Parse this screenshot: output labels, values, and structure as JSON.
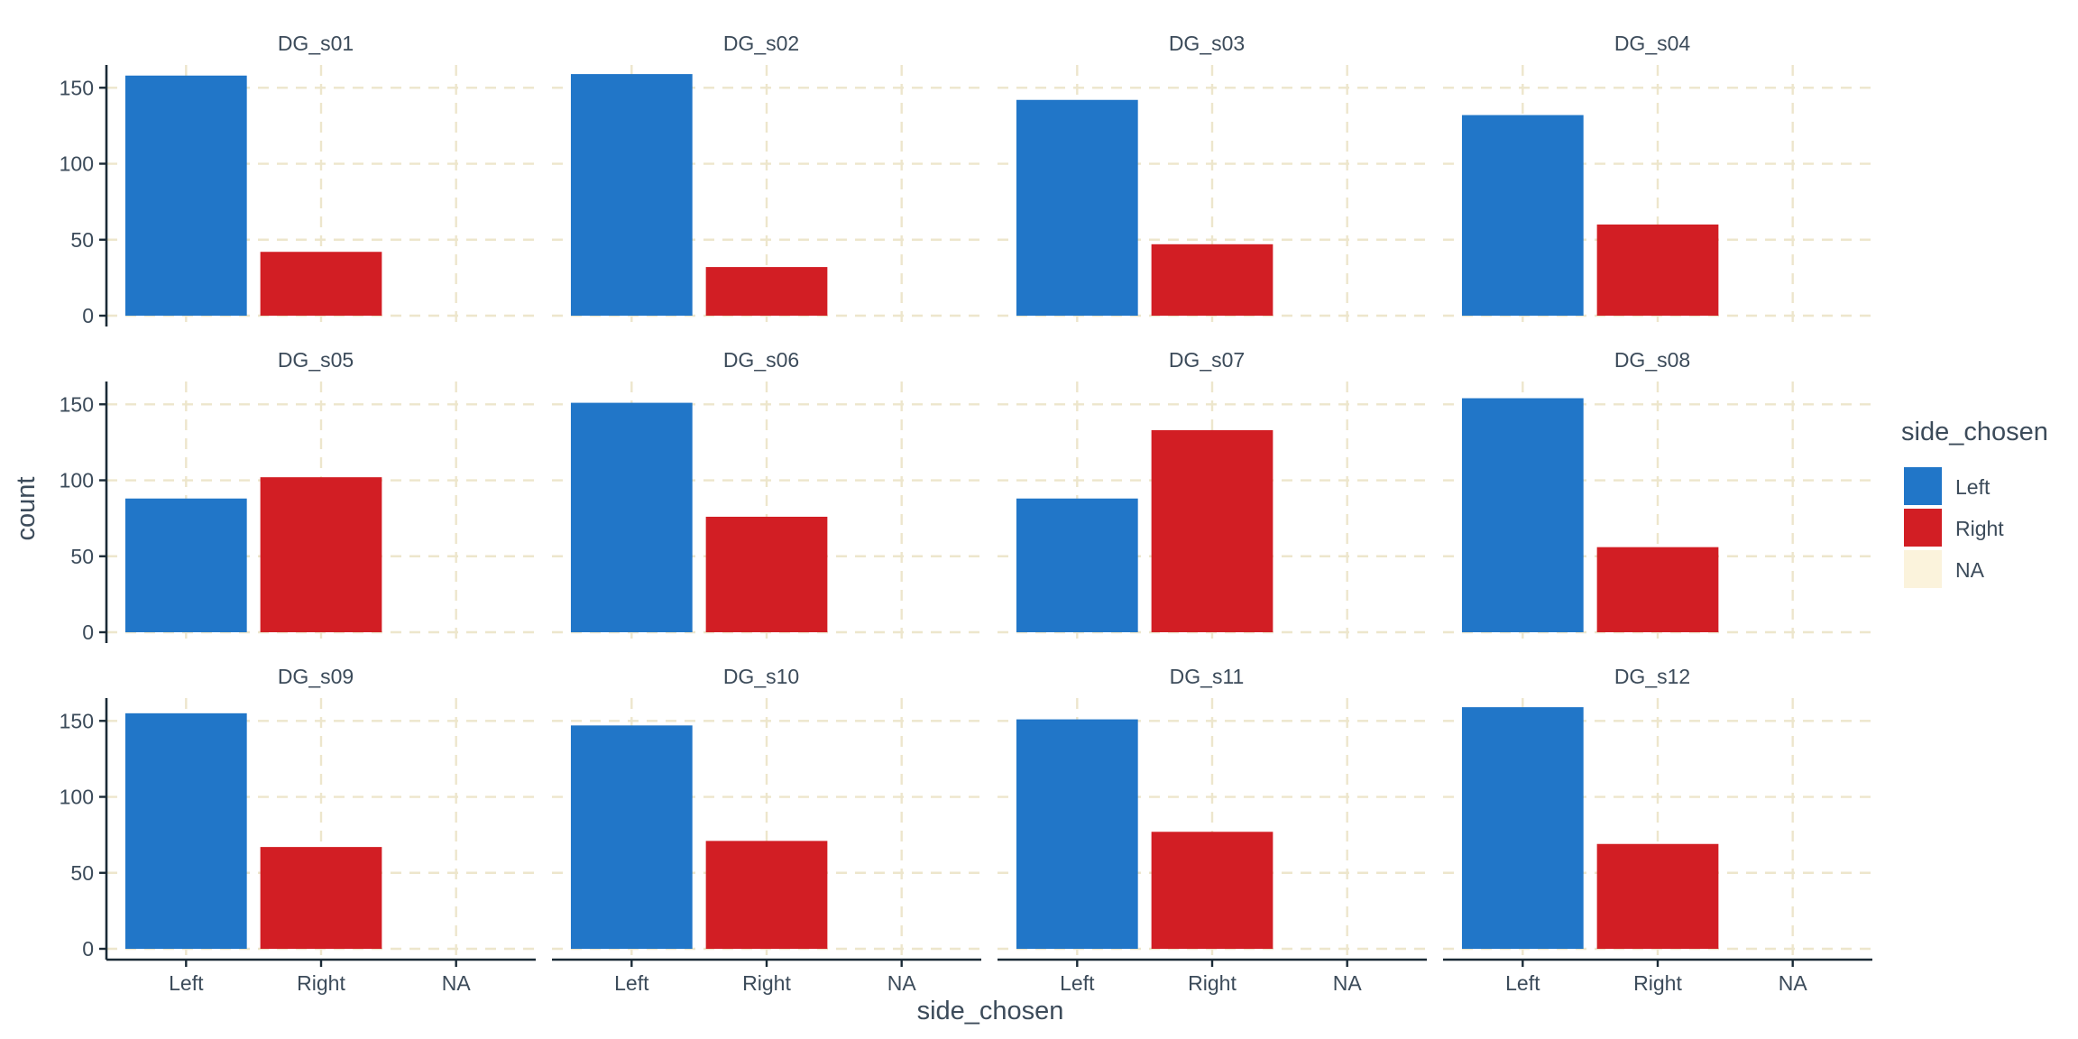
{
  "chart_data": {
    "type": "bar",
    "facet_layout": "3 rows x 4 columns",
    "categories": [
      "Left",
      "Right",
      "NA"
    ],
    "xlabel": "side_chosen",
    "ylabel": "count",
    "ylim": [
      0,
      165
    ],
    "yticks": [
      0,
      50,
      100,
      150
    ],
    "grid": "dashed major gridlines",
    "colors": {
      "Left": "#2176c8",
      "Right": "#d21e24",
      "NA": "#fbf3dc",
      "grid": "#ede6cc",
      "axis": "#1a2a36",
      "text": "#3c4b5a"
    },
    "legend": {
      "title": "side_chosen",
      "position": "right",
      "entries": [
        "Left",
        "Right",
        "NA"
      ]
    },
    "facets": [
      {
        "label": "DG_s01",
        "values": [
          158,
          42,
          0
        ]
      },
      {
        "label": "DG_s02",
        "values": [
          159,
          32,
          0
        ]
      },
      {
        "label": "DG_s03",
        "values": [
          142,
          47,
          0
        ]
      },
      {
        "label": "DG_s04",
        "values": [
          132,
          60,
          0
        ]
      },
      {
        "label": "DG_s05",
        "values": [
          88,
          102,
          0
        ]
      },
      {
        "label": "DG_s06",
        "values": [
          151,
          76,
          0
        ]
      },
      {
        "label": "DG_s07",
        "values": [
          88,
          133,
          0
        ]
      },
      {
        "label": "DG_s08",
        "values": [
          154,
          56,
          0
        ]
      },
      {
        "label": "DG_s09",
        "values": [
          155,
          67,
          0
        ]
      },
      {
        "label": "DG_s10",
        "values": [
          147,
          71,
          0
        ]
      },
      {
        "label": "DG_s11",
        "values": [
          151,
          77,
          0
        ]
      },
      {
        "label": "DG_s12",
        "values": [
          159,
          69,
          0
        ]
      }
    ]
  }
}
